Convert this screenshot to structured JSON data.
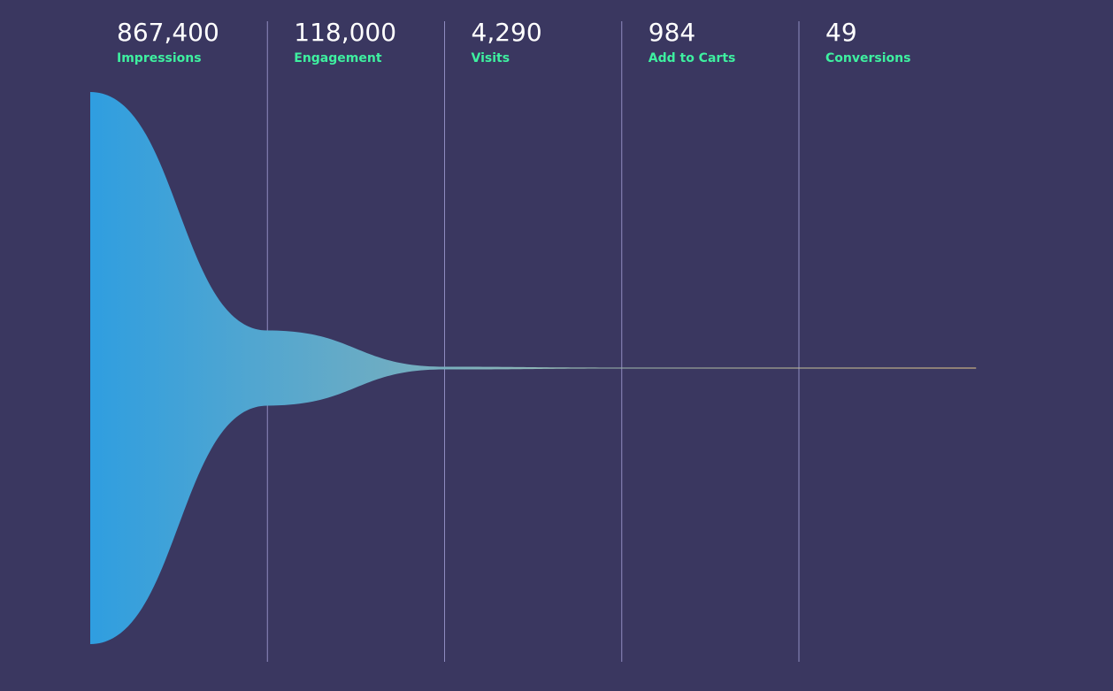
{
  "colors": {
    "background": "#3a3760",
    "gradient_start": "#2f9ee0",
    "gradient_end": "#e8c98a",
    "label": "#3ef0a0",
    "value": "#ffffff",
    "divider": "#8f8cc0"
  },
  "chart_data": {
    "type": "funnel",
    "title": "",
    "stages": [
      {
        "value": 867400,
        "value_label": "867,400",
        "label": "Impressions"
      },
      {
        "value": 118000,
        "value_label": "118,000",
        "label": "Engagement"
      },
      {
        "value": 4290,
        "value_label": "4,290",
        "label": "Visits"
      },
      {
        "value": 984,
        "value_label": "984",
        "label": "Add to Carts"
      },
      {
        "value": 49,
        "value_label": "49",
        "label": "Conversions"
      }
    ]
  }
}
